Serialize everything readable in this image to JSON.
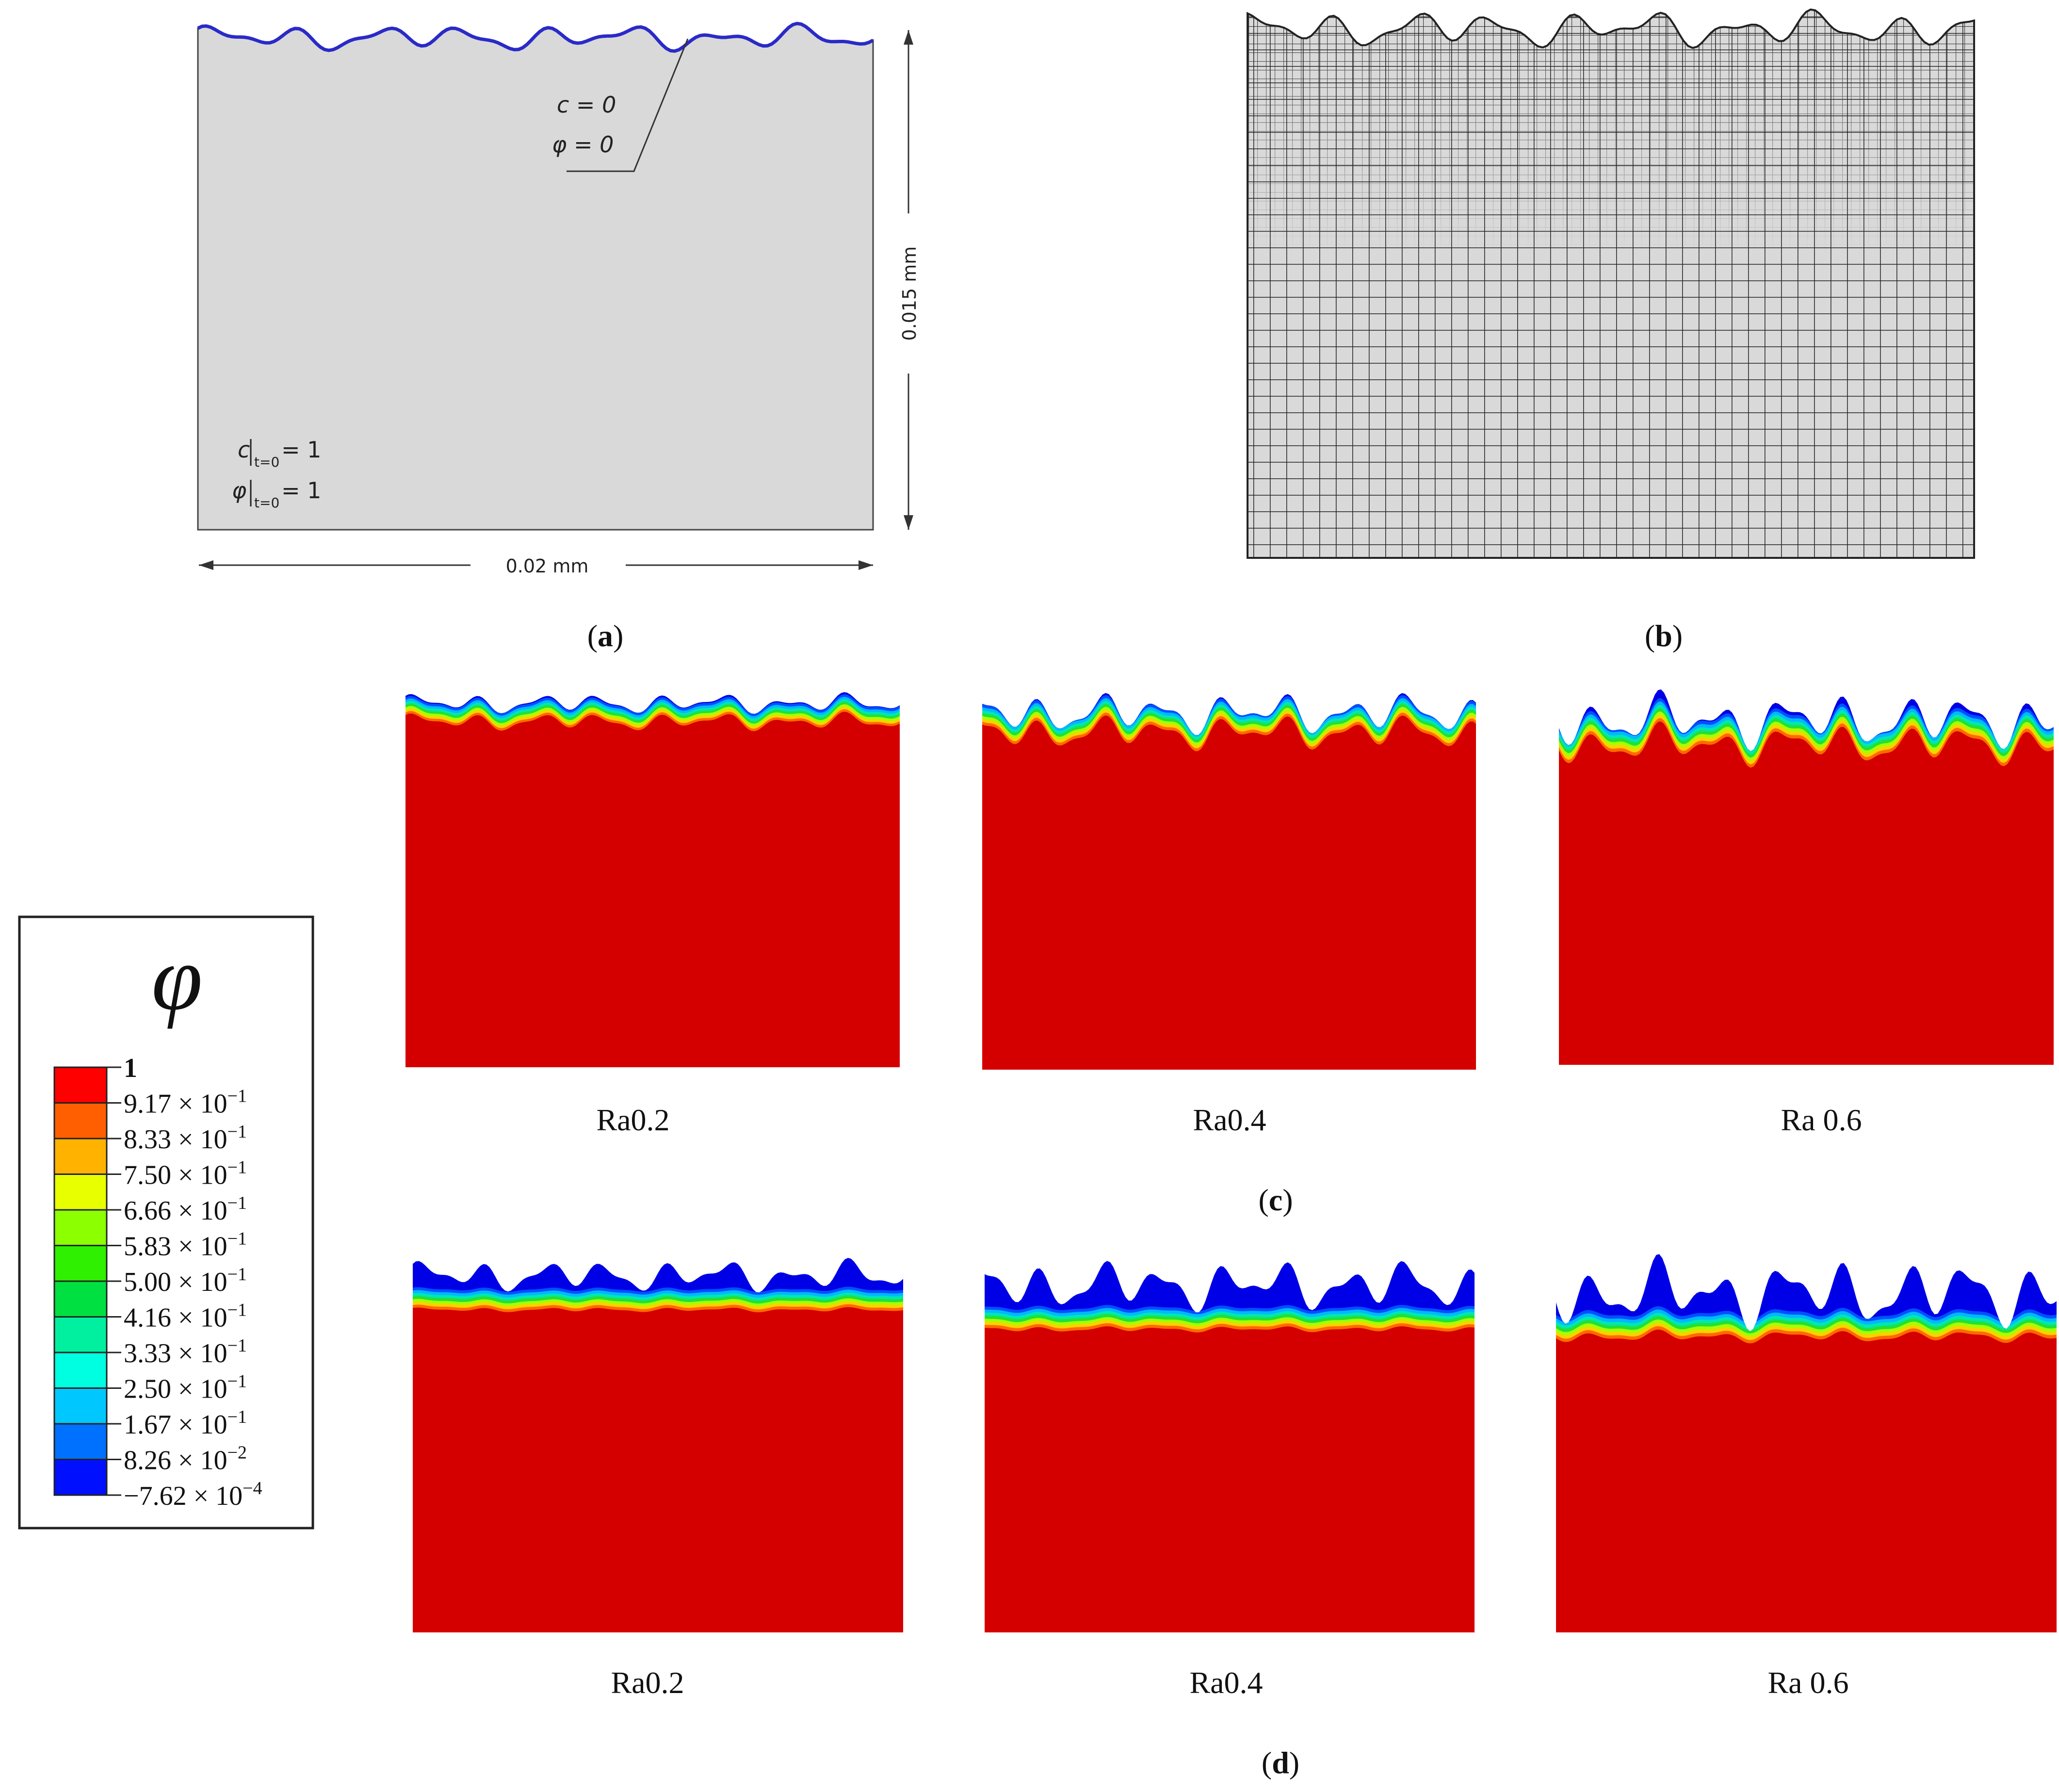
{
  "panel_a": {
    "label_open": "(",
    "label_letter": "a",
    "label_close": ")",
    "boundary_c": "c = 0",
    "boundary_phi": "φ = 0",
    "initial_c_symbol": "c",
    "initial_phi_symbol": "φ",
    "initial_sub": "t=0",
    "initial_value": "= 1",
    "width_dim": "0.02 mm",
    "height_dim": "0.015 mm",
    "surface_color": "#2a2ac8",
    "domain_color": "#d9d9d9"
  },
  "panel_b": {
    "label_open": "(",
    "label_letter": "b",
    "label_close": ")",
    "mesh_color": "#222222"
  },
  "panel_c": {
    "label_open": "(",
    "label_letter": "c",
    "label_close": ")",
    "captions": [
      "Ra0.2",
      "Ra0.4",
      "Ra 0.6"
    ]
  },
  "panel_d": {
    "label_open": "(",
    "label_letter": "d",
    "label_close": ")",
    "captions": [
      "Ra0.2",
      "Ra0.4",
      "Ra 0.6"
    ]
  },
  "legend": {
    "title": "φ",
    "levels": [
      {
        "mantissa": "1",
        "exponent": ""
      },
      {
        "mantissa": "9.17 × 10",
        "exponent": "−1"
      },
      {
        "mantissa": "8.33 × 10",
        "exponent": "−1"
      },
      {
        "mantissa": "7.50 × 10",
        "exponent": "−1"
      },
      {
        "mantissa": "6.66 × 10",
        "exponent": "−1"
      },
      {
        "mantissa": "5.83 × 10",
        "exponent": "−1"
      },
      {
        "mantissa": "5.00 × 10",
        "exponent": "−1"
      },
      {
        "mantissa": "4.16 × 10",
        "exponent": "−1"
      },
      {
        "mantissa": "3.33 × 10",
        "exponent": "−1"
      },
      {
        "mantissa": "2.50 × 10",
        "exponent": "−1"
      },
      {
        "mantissa": "1.67 × 10",
        "exponent": "−1"
      },
      {
        "mantissa": "8.26 × 10",
        "exponent": "−2"
      },
      {
        "mantissa": "−7.62 × 10",
        "exponent": "−4"
      }
    ],
    "colors": [
      "#ff0000",
      "#ff5f00",
      "#ffb300",
      "#e8ff00",
      "#8cff00",
      "#2ef000",
      "#00e040",
      "#00f0a0",
      "#00ffe0",
      "#00c8ff",
      "#0070ff",
      "#0010ff"
    ]
  },
  "field_colors": {
    "bulk": "#d40000",
    "transition": [
      "#ff6a00",
      "#ffd000",
      "#a6ff00",
      "#22e038",
      "#00e8b0",
      "#00b8ff",
      "#0050ff"
    ],
    "depleted": "#0000e6"
  }
}
